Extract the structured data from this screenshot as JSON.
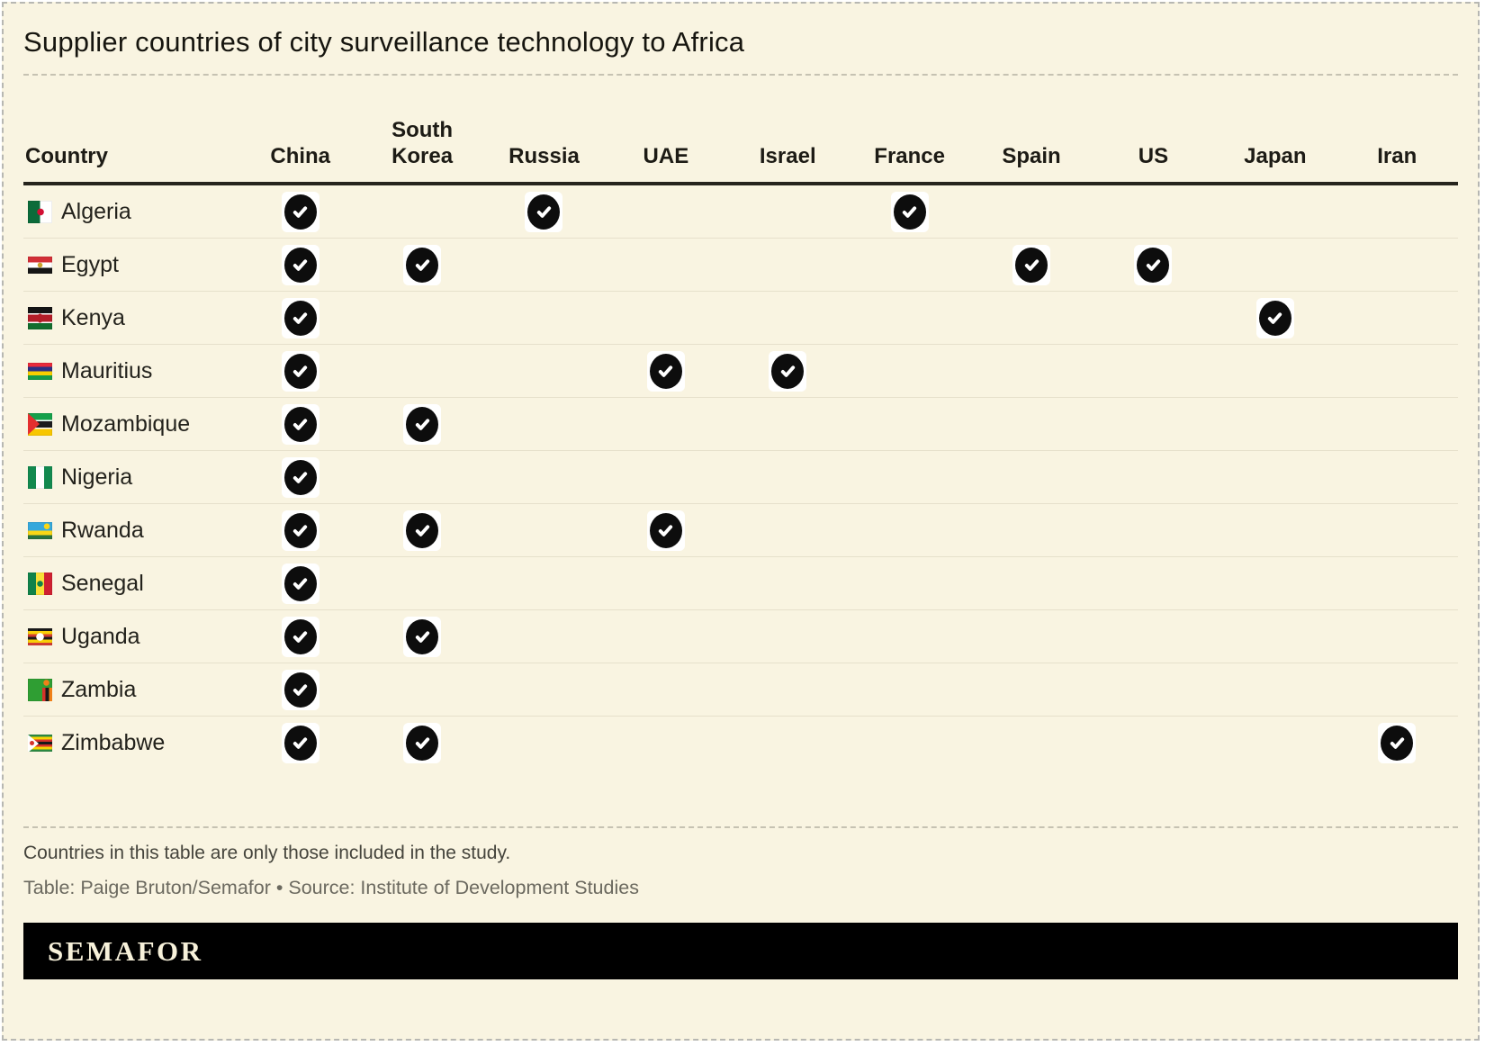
{
  "title": "Supplier countries of city surveillance technology to Africa",
  "chart_data": {
    "type": "table",
    "title": "Supplier countries of city surveillance technology to Africa",
    "row_header": "Country",
    "columns": [
      "China",
      "South Korea",
      "Russia",
      "UAE",
      "Israel",
      "France",
      "Spain",
      "US",
      "Japan",
      "Iran"
    ],
    "rows": [
      {
        "country": "Algeria",
        "suppliers": [
          "China",
          "Russia",
          "France"
        ]
      },
      {
        "country": "Egypt",
        "suppliers": [
          "China",
          "South Korea",
          "Spain",
          "US"
        ]
      },
      {
        "country": "Kenya",
        "suppliers": [
          "China",
          "Japan"
        ]
      },
      {
        "country": "Mauritius",
        "suppliers": [
          "China",
          "UAE",
          "Israel"
        ]
      },
      {
        "country": "Mozambique",
        "suppliers": [
          "China",
          "South Korea"
        ]
      },
      {
        "country": "Nigeria",
        "suppliers": [
          "China"
        ]
      },
      {
        "country": "Rwanda",
        "suppliers": [
          "China",
          "South Korea",
          "UAE"
        ]
      },
      {
        "country": "Senegal",
        "suppliers": [
          "China"
        ]
      },
      {
        "country": "Uganda",
        "suppliers": [
          "China",
          "South Korea"
        ]
      },
      {
        "country": "Zambia",
        "suppliers": [
          "China"
        ]
      },
      {
        "country": "Zimbabwe",
        "suppliers": [
          "China",
          "South Korea",
          "Iran"
        ]
      }
    ],
    "cell_true_marker": "check",
    "grid": "row-dividers",
    "legend_position": "none"
  },
  "footnote": "Countries in this table are only those included in the study.",
  "credit": "Table: Paige Bruton/Semafor • Source: Institute of Development Studies",
  "logo": "SEMAFOR",
  "colors": {
    "background": "#f9f4e1",
    "check_fill": "#0d0d0d",
    "check_mark": "#ffffff",
    "logo_bar": "#000000",
    "logo_text": "#f7f1da"
  }
}
